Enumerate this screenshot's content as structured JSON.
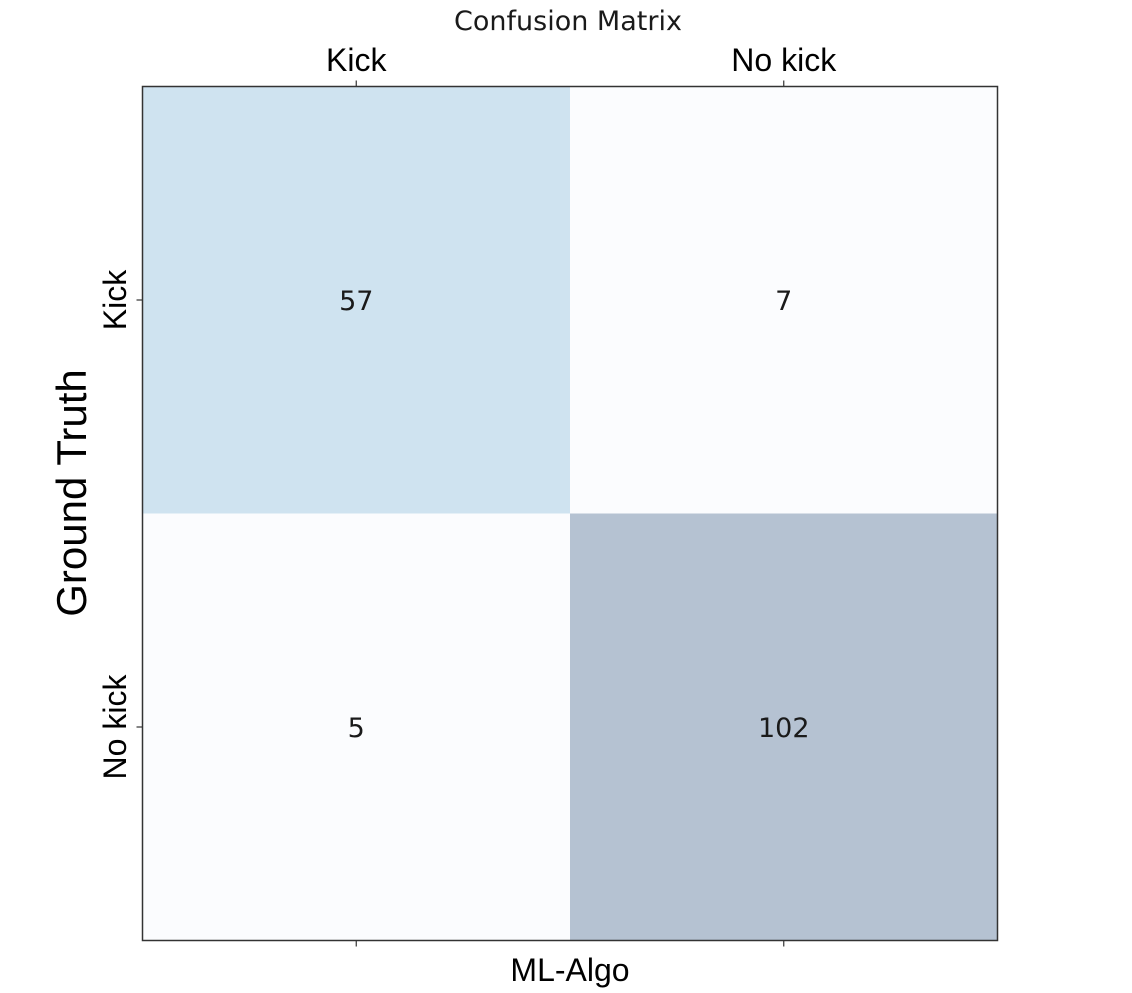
{
  "chart_data": {
    "type": "heatmap",
    "title": "Confusion Matrix",
    "xlabel": "ML-Algo",
    "ylabel": "Ground Truth",
    "x_categories": [
      "Kick",
      "No kick"
    ],
    "y_categories": [
      "Kick",
      "No kick"
    ],
    "values": [
      [
        57,
        7
      ],
      [
        5,
        102
      ]
    ],
    "cell_colors": [
      [
        "#cfe3f0",
        "#fbfcfe"
      ],
      [
        "#fbfcfe",
        "#b5c2d2"
      ]
    ],
    "x_tick_position": "top",
    "grid": false,
    "legend": "none"
  }
}
